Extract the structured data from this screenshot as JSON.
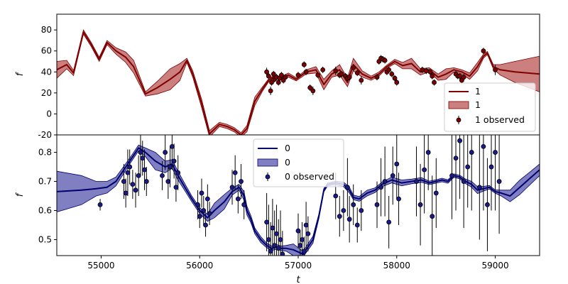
{
  "chart_data": [
    {
      "type": "line",
      "panel": "top",
      "xlabel": "",
      "ylabel": "f",
      "xlim": [
        54550,
        59450
      ],
      "ylim": [
        -20,
        95
      ],
      "yticks": [
        -20,
        0,
        20,
        40,
        60,
        80
      ],
      "legend": "lower-right",
      "colors": {
        "line": "#7f0000",
        "band": "#b03a3a",
        "points": "#7f0000"
      },
      "series": [
        {
          "name": "1",
          "kind": "line"
        },
        {
          "name": "1",
          "kind": "band"
        },
        {
          "name": "1 observed",
          "kind": "points"
        }
      ],
      "model": {
        "x": [
          54550,
          54650,
          54720,
          54820,
          54900,
          54980,
          55060,
          55150,
          55250,
          55330,
          55450,
          55570,
          55700,
          55800,
          55870,
          55930,
          56020,
          56100,
          56200,
          56280,
          56350,
          56420,
          56480,
          56560,
          56640,
          56700,
          56760,
          56820,
          56900,
          56980,
          57080,
          57180,
          57260,
          57340,
          57420,
          57500,
          57560,
          57650,
          57740,
          57820,
          57900,
          57980,
          58060,
          58150,
          58240,
          58330,
          58420,
          58500,
          58580,
          58660,
          58740,
          58820,
          58880,
          58920,
          58980,
          59050,
          59200,
          59450
        ],
        "mean": [
          42,
          47,
          39,
          78,
          66,
          52,
          68,
          60,
          54,
          45,
          19,
          25,
          33,
          40,
          51,
          38,
          10,
          -19,
          -10,
          -12,
          -15,
          -20,
          -14,
          12,
          24,
          32,
          36,
          34,
          37,
          33,
          40,
          42,
          28,
          38,
          42,
          30,
          47,
          38,
          34,
          38,
          45,
          50,
          46,
          48,
          40,
          42,
          35,
          38,
          42,
          40,
          36,
          45,
          55,
          58,
          45,
          42,
          40,
          38
        ],
        "std": [
          8,
          4,
          2.5,
          2,
          2,
          2,
          2,
          3,
          5,
          6,
          2,
          6,
          10,
          8,
          2,
          3,
          4,
          3,
          2,
          2,
          2,
          2,
          3,
          4,
          2,
          1.5,
          1,
          1,
          2,
          1.5,
          2,
          3,
          5,
          3,
          5,
          4,
          6,
          3,
          2,
          2,
          1.5,
          2,
          3,
          5,
          3,
          2,
          3,
          5,
          2,
          2,
          3,
          4,
          2,
          1.5,
          2,
          5,
          10,
          17
        ]
      },
      "observed": {
        "x": [
          56680,
          56700,
          56720,
          56730,
          56750,
          56760,
          56780,
          56800,
          56810,
          56830,
          56850,
          56870,
          57000,
          57060,
          57080,
          57120,
          57150,
          57200,
          57250,
          57380,
          57420,
          57440,
          57480,
          57500,
          57520,
          57560,
          57600,
          57640,
          57800,
          57820,
          57840,
          57860,
          57880,
          57900,
          57920,
          57950,
          57980,
          58000,
          58260,
          58300,
          58340,
          58360,
          58380,
          58600,
          58620,
          58640,
          58660,
          58680,
          58880,
          59000
        ],
        "y": [
          40,
          36,
          22,
          30,
          38,
          33,
          35,
          30,
          34,
          37,
          32,
          35,
          37,
          47,
          40,
          25,
          22,
          37,
          42,
          41,
          37,
          38,
          36,
          34,
          35,
          44,
          39,
          32,
          35,
          50,
          53,
          52,
          51,
          40,
          42,
          38,
          34,
          30,
          42,
          41,
          40,
          36,
          30,
          38,
          36,
          36,
          32,
          35,
          60,
          42
        ],
        "err": [
          4,
          3,
          4,
          3,
          3,
          3,
          3,
          3,
          3,
          3,
          3,
          3,
          3,
          3,
          3,
          3,
          4,
          3,
          3,
          4,
          3,
          3,
          3,
          3,
          3,
          3,
          3,
          4,
          3,
          3,
          3,
          3,
          3,
          3,
          3,
          3,
          3,
          3,
          3,
          3,
          3,
          3,
          3,
          3,
          3,
          3,
          3,
          3,
          3,
          5
        ]
      }
    },
    {
      "type": "line",
      "panel": "bottom",
      "xlabel": "t",
      "ylabel": "f",
      "xlim": [
        54550,
        59450
      ],
      "ylim": [
        0.445,
        0.86
      ],
      "xticks": [
        55000,
        56000,
        57000,
        58000,
        59000
      ],
      "yticks": [
        0.5,
        0.6,
        0.7,
        0.8
      ],
      "legend": "upper-center",
      "colors": {
        "line": "#00006e",
        "band": "#3a3aa0",
        "points": "#1a1a8a"
      },
      "series": [
        {
          "name": "0",
          "kind": "line"
        },
        {
          "name": "0",
          "kind": "band"
        },
        {
          "name": "0 observed",
          "kind": "points"
        }
      ],
      "model": {
        "x": [
          54550,
          54800,
          54950,
          55060,
          55150,
          55230,
          55300,
          55380,
          55450,
          55550,
          55650,
          55720,
          55780,
          55850,
          55920,
          56000,
          56080,
          56150,
          56250,
          56330,
          56400,
          56450,
          56480,
          56520,
          56560,
          56620,
          56680,
          56730,
          56780,
          56830,
          56880,
          56950,
          57050,
          57150,
          57210,
          57260,
          57300,
          57380,
          57460,
          57520,
          57560,
          57620,
          57700,
          57780,
          57850,
          57950,
          58050,
          58150,
          58250,
          58330,
          58400,
          58460,
          58520,
          58580,
          58640,
          58700,
          58760,
          58820,
          58880,
          58940,
          59000,
          59060,
          59150,
          59250,
          59350,
          59450
        ],
        "mean": [
          0.665,
          0.67,
          0.675,
          0.68,
          0.7,
          0.74,
          0.775,
          0.815,
          0.8,
          0.77,
          0.75,
          0.76,
          0.72,
          0.68,
          0.64,
          0.6,
          0.575,
          0.6,
          0.63,
          0.665,
          0.68,
          0.65,
          0.6,
          0.57,
          0.53,
          0.5,
          0.48,
          0.47,
          0.475,
          0.47,
          0.47,
          0.465,
          0.45,
          0.5,
          0.58,
          0.67,
          0.69,
          0.695,
          0.69,
          0.67,
          0.645,
          0.64,
          0.66,
          0.67,
          0.69,
          0.705,
          0.695,
          0.7,
          0.705,
          0.695,
          0.7,
          0.705,
          0.7,
          0.72,
          0.715,
          0.7,
          0.69,
          0.67,
          0.675,
          0.68,
          0.665,
          0.66,
          0.65,
          0.68,
          0.71,
          0.74
        ],
        "std": [
          0.07,
          0.05,
          0.025,
          0.02,
          0.015,
          0.012,
          0.01,
          0.01,
          0.015,
          0.03,
          0.02,
          0.015,
          0.015,
          0.012,
          0.01,
          0.01,
          0.012,
          0.025,
          0.025,
          0.012,
          0.01,
          0.015,
          0.015,
          0.012,
          0.01,
          0.01,
          0.008,
          0.008,
          0.008,
          0.008,
          0.01,
          0.02,
          0.01,
          0.012,
          0.008,
          0.006,
          0.005,
          0.006,
          0.008,
          0.01,
          0.008,
          0.008,
          0.01,
          0.008,
          0.008,
          0.01,
          0.01,
          0.008,
          0.008,
          0.006,
          0.006,
          0.006,
          0.006,
          0.006,
          0.006,
          0.008,
          0.01,
          0.012,
          0.008,
          0.006,
          0.006,
          0.01,
          0.02,
          0.025,
          0.022,
          0.02
        ]
      },
      "observed": {
        "x": [
          54990,
          55230,
          55250,
          55270,
          55290,
          55320,
          55350,
          55380,
          55400,
          55420,
          55440,
          55460,
          55620,
          55650,
          55680,
          55700,
          55720,
          55740,
          55760,
          55780,
          55980,
          56000,
          56020,
          56040,
          56060,
          56080,
          56100,
          56330,
          56360,
          56390,
          56420,
          56450,
          56680,
          56700,
          56720,
          56740,
          56760,
          56780,
          56800,
          56820,
          56840,
          57000,
          57020,
          57040,
          57060,
          57080,
          57100,
          57380,
          57420,
          57460,
          57500,
          57520,
          57560,
          57600,
          57640,
          57800,
          57840,
          57880,
          57920,
          57960,
          58000,
          58020,
          58200,
          58240,
          58280,
          58320,
          58360,
          58400,
          58560,
          58600,
          58640,
          58680,
          58720,
          58760,
          58840,
          58880,
          58920,
          58960,
          59000,
          59040
        ],
        "y": [
          0.62,
          0.7,
          0.66,
          0.73,
          0.75,
          0.69,
          0.67,
          0.72,
          0.8,
          0.78,
          0.74,
          0.7,
          0.72,
          0.8,
          0.7,
          0.75,
          0.82,
          0.77,
          0.68,
          0.73,
          0.62,
          0.58,
          0.66,
          0.6,
          0.55,
          0.64,
          0.59,
          0.68,
          0.73,
          0.64,
          0.7,
          0.62,
          0.56,
          0.5,
          0.46,
          0.54,
          0.48,
          0.52,
          0.47,
          0.5,
          0.45,
          0.53,
          0.48,
          0.5,
          0.46,
          0.55,
          0.52,
          0.65,
          0.58,
          0.6,
          0.68,
          0.57,
          0.62,
          0.55,
          0.6,
          0.62,
          0.68,
          0.7,
          0.56,
          0.72,
          0.76,
          0.64,
          0.7,
          0.62,
          0.74,
          0.8,
          0.58,
          0.66,
          0.72,
          0.78,
          0.84,
          0.7,
          0.75,
          0.8,
          0.68,
          0.82,
          0.62,
          0.75,
          0.8,
          0.7
        ],
        "err": [
          0.02,
          0.06,
          0.05,
          0.08,
          0.06,
          0.05,
          0.06,
          0.07,
          0.08,
          0.06,
          0.07,
          0.05,
          0.05,
          0.06,
          0.06,
          0.07,
          0.08,
          0.06,
          0.05,
          0.06,
          0.05,
          0.04,
          0.05,
          0.05,
          0.04,
          0.05,
          0.04,
          0.06,
          0.06,
          0.05,
          0.06,
          0.05,
          0.1,
          0.12,
          0.1,
          0.1,
          0.12,
          0.1,
          0.1,
          0.1,
          0.08,
          0.06,
          0.05,
          0.06,
          0.05,
          0.08,
          0.06,
          0.08,
          0.07,
          0.07,
          0.1,
          0.08,
          0.07,
          0.06,
          0.07,
          0.08,
          0.1,
          0.12,
          0.09,
          0.1,
          0.12,
          0.09,
          0.12,
          0.14,
          0.15,
          0.13,
          0.14,
          0.12,
          0.15,
          0.18,
          0.2,
          0.16,
          0.14,
          0.2,
          0.18,
          0.22,
          0.16,
          0.15,
          0.2,
          0.18
        ]
      }
    }
  ]
}
